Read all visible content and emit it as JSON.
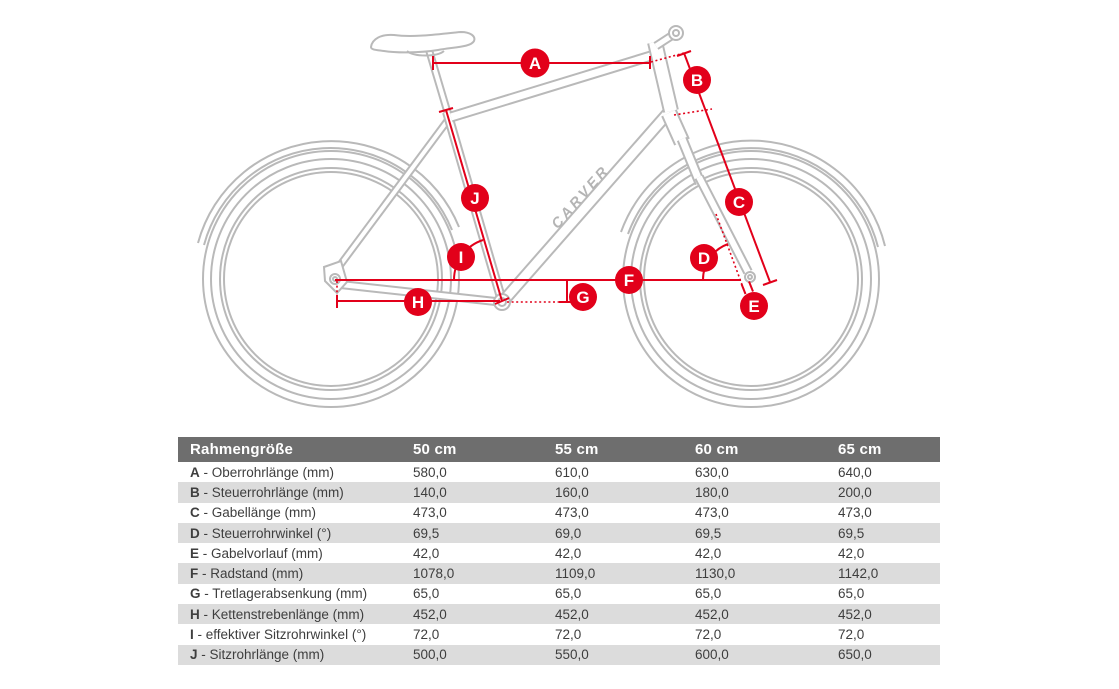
{
  "brand": {
    "logo_text": "CARVER"
  },
  "diagram": {
    "accent_color": "#e2001a",
    "line_color": "#b9b9b9",
    "labels": [
      "A",
      "B",
      "C",
      "D",
      "E",
      "F",
      "G",
      "H",
      "I",
      "J"
    ]
  },
  "table": {
    "separator": "-",
    "header": [
      "Rahmengröße",
      "50 cm",
      "55 cm",
      "60 cm",
      "65 cm"
    ],
    "rows": [
      {
        "key": "A",
        "label": "Oberrohrlänge (mm)",
        "values": [
          "580,0",
          "610,0",
          "630,0",
          "640,0"
        ]
      },
      {
        "key": "B",
        "label": "Steuerrohrlänge (mm)",
        "values": [
          "140,0",
          "160,0",
          "180,0",
          "200,0"
        ]
      },
      {
        "key": "C",
        "label": "Gabellänge (mm)",
        "values": [
          "473,0",
          "473,0",
          "473,0",
          "473,0"
        ]
      },
      {
        "key": "D",
        "label": "Steuerrohrwinkel (°)",
        "values": [
          "69,5",
          "69,0",
          "69,5",
          "69,5"
        ]
      },
      {
        "key": "E",
        "label": "Gabelvorlauf (mm)",
        "values": [
          "42,0",
          "42,0",
          "42,0",
          "42,0"
        ]
      },
      {
        "key": "F",
        "label": "Radstand (mm)",
        "values": [
          "1078,0",
          "1109,0",
          "1130,0",
          "1142,0"
        ]
      },
      {
        "key": "G",
        "label": "Tretlagerabsenkung (mm)",
        "values": [
          "65,0",
          "65,0",
          "65,0",
          "65,0"
        ]
      },
      {
        "key": "H",
        "label": "Kettenstrebenlänge (mm)",
        "values": [
          "452,0",
          "452,0",
          "452,0",
          "452,0"
        ]
      },
      {
        "key": "I",
        "label": "effektiver Sitzrohrwinkel (°)",
        "values": [
          "72,0",
          "72,0",
          "72,0",
          "72,0"
        ]
      },
      {
        "key": "J",
        "label": "Sitzrohrlänge (mm)",
        "values": [
          "500,0",
          "550,0",
          "600,0",
          "650,0"
        ]
      }
    ]
  }
}
